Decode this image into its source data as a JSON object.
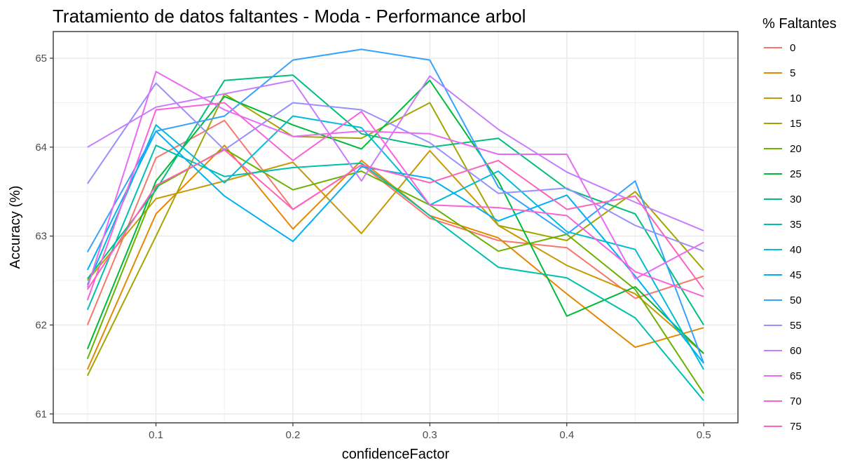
{
  "chart_data": {
    "type": "line",
    "title": "Tratamiento de datos faltantes - Moda - Performance arbol",
    "xlabel": "confidenceFactor",
    "ylabel": "Accuracy (%)",
    "xlim": [
      0.025,
      0.525
    ],
    "ylim": [
      60.9,
      65.3
    ],
    "x_ticks": [
      0.1,
      0.2,
      0.3,
      0.4,
      0.5
    ],
    "x_tick_labels": [
      "0.1",
      "0.2",
      "0.3",
      "0.4",
      "0.5"
    ],
    "y_ticks": [
      61,
      62,
      63,
      64,
      65
    ],
    "y_tick_labels": [
      "61",
      "62",
      "63",
      "64",
      "65"
    ],
    "grid": true,
    "legend_title": "% Faltantes",
    "legend_position": "right",
    "x": [
      0.05,
      0.1,
      0.15,
      0.2,
      0.25,
      0.3,
      0.35,
      0.4,
      0.45,
      0.5
    ],
    "series": [
      {
        "name": "0",
        "color": "#F8766D",
        "values": [
          62.0,
          63.88,
          64.3,
          63.3,
          63.8,
          63.2,
          62.95,
          62.87,
          62.3,
          62.55
        ]
      },
      {
        "name": "5",
        "color": "#E58700",
        "values": [
          61.5,
          63.25,
          64.02,
          63.08,
          63.85,
          63.23,
          62.98,
          62.35,
          61.75,
          61.97
        ]
      },
      {
        "name": "10",
        "color": "#C99800",
        "values": [
          62.5,
          63.42,
          63.62,
          63.83,
          63.03,
          63.96,
          63.12,
          62.67,
          62.35,
          61.68
        ]
      },
      {
        "name": "15",
        "color": "#A3A500",
        "values": [
          61.43,
          63.0,
          64.6,
          64.12,
          64.1,
          64.5,
          63.12,
          62.95,
          63.5,
          62.62
        ]
      },
      {
        "name": "20",
        "color": "#6BB100",
        "values": [
          61.62,
          63.55,
          63.98,
          63.52,
          63.73,
          63.35,
          62.83,
          63.02,
          62.4,
          61.23
        ]
      },
      {
        "name": "25",
        "color": "#00BA38",
        "values": [
          61.73,
          63.62,
          64.57,
          64.25,
          63.98,
          64.75,
          63.62,
          62.1,
          62.43,
          61.68
        ]
      },
      {
        "name": "30",
        "color": "#00BF7D",
        "values": [
          62.52,
          63.52,
          64.75,
          64.81,
          64.15,
          64.0,
          64.1,
          63.53,
          63.25,
          62.0
        ]
      },
      {
        "name": "35",
        "color": "#00C0AF",
        "values": [
          62.17,
          64.02,
          63.67,
          63.77,
          63.82,
          63.23,
          62.65,
          62.53,
          62.08,
          61.15
        ]
      },
      {
        "name": "40",
        "color": "#00BCD8",
        "values": [
          62.45,
          64.25,
          63.6,
          64.35,
          64.22,
          63.35,
          63.73,
          63.05,
          62.85,
          61.5
        ]
      },
      {
        "name": "45",
        "color": "#00B0F6",
        "values": [
          62.62,
          64.18,
          63.45,
          62.94,
          63.78,
          63.65,
          63.17,
          63.46,
          62.55,
          61.57
        ]
      },
      {
        "name": "50",
        "color": "#35A2FF",
        "values": [
          62.82,
          64.18,
          64.35,
          64.98,
          65.1,
          64.98,
          63.55,
          63.02,
          63.62,
          61.57
        ]
      },
      {
        "name": "55",
        "color": "#9590FF",
        "values": [
          63.59,
          64.72,
          63.97,
          64.5,
          64.42,
          64.05,
          63.48,
          63.54,
          63.12,
          62.83
        ]
      },
      {
        "name": "60",
        "color": "#C77CFF",
        "values": [
          64.0,
          64.45,
          64.6,
          64.75,
          63.62,
          64.8,
          64.2,
          63.72,
          63.38,
          63.06
        ]
      },
      {
        "name": "65",
        "color": "#E76BF3",
        "values": [
          62.42,
          64.85,
          64.42,
          64.12,
          64.18,
          64.15,
          63.92,
          63.92,
          62.52,
          62.93
        ]
      },
      {
        "name": "70",
        "color": "#FA62DB",
        "values": [
          62.28,
          64.42,
          64.5,
          63.85,
          64.4,
          63.35,
          63.32,
          63.23,
          62.6,
          62.32
        ]
      },
      {
        "name": "75",
        "color": "#FF62BC",
        "values": [
          62.4,
          63.57,
          63.97,
          63.3,
          63.8,
          63.6,
          63.85,
          63.3,
          63.45,
          62.4
        ]
      }
    ]
  }
}
